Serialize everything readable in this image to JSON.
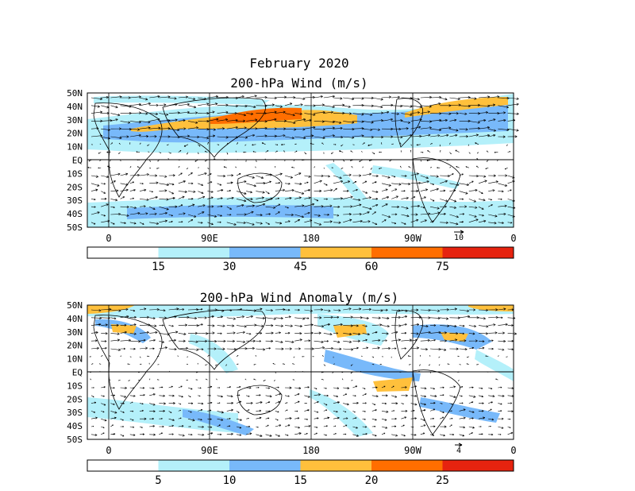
{
  "figure": {
    "title": "February 2020",
    "panels": [
      {
        "title": "200-hPa Wind (m/s)",
        "lat_labels": [
          "50N",
          "40N",
          "30N",
          "20N",
          "10N",
          "EQ",
          "10S",
          "20S",
          "30S",
          "40S",
          "50S"
        ],
        "lon_labels": [
          "0",
          "90E",
          "180",
          "90W",
          "0"
        ],
        "ref_vector": "10",
        "colorbar": {
          "labels": [
            "15",
            "30",
            "45",
            "60",
            "75"
          ],
          "colors": [
            "#ffffff",
            "#b4f0fa",
            "#78b9fa",
            "#ffc03c",
            "#ff6e00",
            "#e6230f"
          ]
        }
      },
      {
        "title": "200-hPa Wind Anomaly (m/s)",
        "lat_labels": [
          "50N",
          "40N",
          "30N",
          "20N",
          "10N",
          "EQ",
          "10S",
          "20S",
          "30S",
          "40S",
          "50S"
        ],
        "lon_labels": [
          "0",
          "90E",
          "180",
          "90W",
          "0"
        ],
        "ref_vector": "4",
        "colorbar": {
          "labels": [
            "5",
            "10",
            "15",
            "20",
            "25"
          ],
          "colors": [
            "#ffffff",
            "#b4f0fa",
            "#78b9fa",
            "#ffc03c",
            "#ff6e00",
            "#e6230f"
          ]
        }
      }
    ]
  }
}
